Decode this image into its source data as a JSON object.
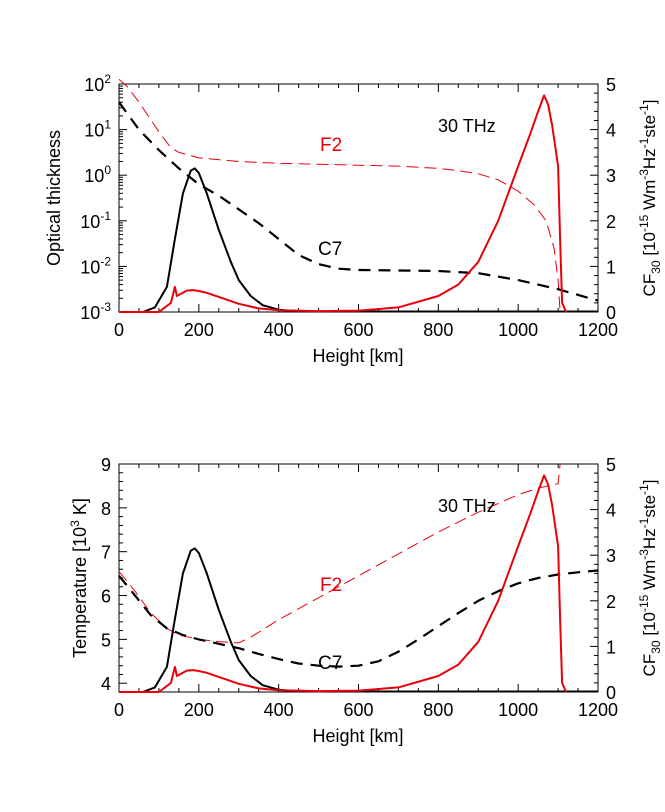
{
  "chart_data": [
    {
      "type": "line",
      "title": "",
      "xlabel": "Height [km]",
      "ylabel": "Optical thickness",
      "y2label_base": "CF",
      "y2label_sub": "30",
      "y2label_rest": " [10",
      "y2label_exp": "-15",
      "y2label_tail": " Wm",
      "y2label_exp2": "-3",
      "y2label_hz": "Hz",
      "y2label_exp3": "-1",
      "y2label_ste": "ste",
      "y2label_exp4": "-1",
      "y2label_end": "]",
      "xlim": [
        0,
        1200
      ],
      "ylim_log10": [
        -3,
        2
      ],
      "y2lim": [
        0,
        5
      ],
      "xticks": [
        "0",
        "200",
        "400",
        "600",
        "800",
        "1000",
        "1200"
      ],
      "yticks": [
        {
          "base": "10",
          "exp": "2",
          "log": 2
        },
        {
          "base": "10",
          "exp": "1",
          "log": 1
        },
        {
          "base": "10",
          "exp": "0",
          "log": 0
        },
        {
          "base": "10",
          "exp": "-1",
          "log": -1
        },
        {
          "base": "10",
          "exp": "-2",
          "log": -2
        },
        {
          "base": "10",
          "exp": "-3",
          "log": -3
        }
      ],
      "y2ticks": [
        "0",
        "1",
        "2",
        "3",
        "4",
        "5"
      ],
      "annotations": {
        "freq": "30 THz",
        "f2": "F2",
        "c7": "C7"
      },
      "colors": {
        "F2": "#e8000b",
        "C7": "#000000"
      },
      "series": [
        {
          "name": "F2",
          "axis": "left",
          "style": "dashed-thin",
          "color": "#e8000b",
          "x": [
            0,
            20,
            50,
            100,
            130,
            150,
            200,
            300,
            400,
            500,
            600,
            700,
            800,
            850,
            900,
            950,
            1000,
            1040,
            1070,
            1090,
            1100,
            1105
          ],
          "y": [
            2.1,
            1.95,
            1.6,
            0.95,
            0.6,
            0.5,
            0.38,
            0.3,
            0.26,
            0.24,
            0.22,
            0.2,
            0.15,
            0.1,
            0.03,
            -0.1,
            -0.35,
            -0.65,
            -1.0,
            -1.6,
            -2.3,
            -3.0
          ]
        },
        {
          "name": "C7",
          "axis": "left",
          "style": "dashed-thick",
          "color": "#000000",
          "x": [
            0,
            50,
            100,
            150,
            200,
            250,
            300,
            350,
            400,
            450,
            500,
            550,
            600,
            700,
            800,
            900,
            1000,
            1100,
            1200
          ],
          "y": [
            1.6,
            1.0,
            0.55,
            0.15,
            -0.2,
            -0.45,
            -0.75,
            -1.05,
            -1.4,
            -1.75,
            -1.95,
            -2.05,
            -2.08,
            -2.09,
            -2.1,
            -2.15,
            -2.3,
            -2.5,
            -2.75
          ]
        },
        {
          "name": "C7",
          "axis": "right",
          "style": "solid",
          "color": "#000000",
          "x": [
            0,
            60,
            90,
            120,
            140,
            160,
            180,
            190,
            200,
            220,
            250,
            280,
            300,
            330,
            360,
            400,
            450,
            500,
            600,
            800,
            1000,
            1200
          ],
          "y": [
            0,
            0,
            0.1,
            0.55,
            1.6,
            2.6,
            3.1,
            3.15,
            3.05,
            2.6,
            1.8,
            1.1,
            0.7,
            0.35,
            0.15,
            0.05,
            0.01,
            0.01,
            0.01,
            0.01,
            0.01,
            0.01
          ]
        },
        {
          "name": "F2",
          "axis": "right",
          "style": "solid",
          "color": "#e8000b",
          "x": [
            0,
            100,
            130,
            140,
            145,
            155,
            170,
            185,
            200,
            220,
            260,
            300,
            350,
            400,
            500,
            600,
            700,
            800,
            850,
            900,
            950,
            1000,
            1030,
            1050,
            1065,
            1075,
            1085,
            1100,
            1105,
            1110,
            1120
          ],
          "y": [
            0,
            0,
            0.2,
            0.55,
            0.35,
            0.4,
            0.47,
            0.48,
            0.46,
            0.42,
            0.3,
            0.18,
            0.08,
            0.04,
            0.02,
            0.03,
            0.1,
            0.35,
            0.6,
            1.1,
            2.0,
            3.2,
            3.9,
            4.4,
            4.75,
            4.55,
            4.1,
            3.2,
            1.6,
            0.2,
            0.0
          ]
        }
      ]
    },
    {
      "type": "line",
      "title": "",
      "xlabel": "Height [km]",
      "ylabel_pre": "Temperature [10",
      "ylabel_exp": "3",
      "ylabel_post": " K]",
      "xlim": [
        0,
        1200
      ],
      "ylim": [
        3.8,
        9
      ],
      "y2lim": [
        0,
        5
      ],
      "xticks": [
        "0",
        "200",
        "400",
        "600",
        "800",
        "1000",
        "1200"
      ],
      "yticks": [
        "4",
        "5",
        "6",
        "7",
        "8",
        "9"
      ],
      "y2ticks": [
        "0",
        "1",
        "2",
        "3",
        "4",
        "5"
      ],
      "annotations": {
        "freq": "30 THz",
        "f2": "F2",
        "c7": "C7"
      },
      "series": [
        {
          "name": "F2",
          "axis": "left",
          "style": "dashed-thin",
          "color": "#e8000b",
          "x": [
            0,
            40,
            80,
            120,
            150,
            200,
            250,
            300,
            330,
            400,
            500,
            600,
            700,
            800,
            900,
            1000,
            1050,
            1100,
            1105
          ],
          "y": [
            6.55,
            6.1,
            5.6,
            5.25,
            5.1,
            5.0,
            4.95,
            4.92,
            5.05,
            5.45,
            5.95,
            6.45,
            6.95,
            7.45,
            7.9,
            8.3,
            8.45,
            8.55,
            9.0
          ]
        },
        {
          "name": "C7",
          "axis": "left",
          "style": "dashed-thick",
          "color": "#000000",
          "x": [
            0,
            40,
            80,
            120,
            160,
            200,
            250,
            300,
            350,
            400,
            450,
            500,
            550,
            600,
            650,
            700,
            750,
            800,
            850,
            900,
            950,
            1000,
            1050,
            1100,
            1150,
            1200
          ],
          "y": [
            6.45,
            6.0,
            5.55,
            5.25,
            5.1,
            5.0,
            4.9,
            4.8,
            4.67,
            4.55,
            4.45,
            4.4,
            4.38,
            4.4,
            4.5,
            4.72,
            5.0,
            5.3,
            5.6,
            5.88,
            6.1,
            6.28,
            6.4,
            6.48,
            6.53,
            6.57
          ]
        },
        {
          "name": "C7",
          "axis": "right",
          "style": "solid",
          "color": "#000000",
          "x": [
            0,
            60,
            90,
            120,
            140,
            160,
            180,
            190,
            200,
            220,
            250,
            280,
            300,
            330,
            360,
            400,
            450,
            500,
            600,
            800,
            1000,
            1200
          ],
          "y": [
            0,
            0,
            0.1,
            0.55,
            1.6,
            2.6,
            3.1,
            3.15,
            3.05,
            2.6,
            1.8,
            1.1,
            0.7,
            0.35,
            0.15,
            0.05,
            0.01,
            0.01,
            0.01,
            0.01,
            0.01,
            0.01
          ]
        },
        {
          "name": "F2",
          "axis": "right",
          "style": "solid",
          "color": "#e8000b",
          "x": [
            0,
            100,
            130,
            140,
            145,
            155,
            170,
            185,
            200,
            220,
            260,
            300,
            350,
            400,
            500,
            600,
            700,
            800,
            850,
            900,
            950,
            1000,
            1030,
            1050,
            1065,
            1075,
            1085,
            1100,
            1105,
            1110,
            1120
          ],
          "y": [
            0,
            0,
            0.2,
            0.55,
            0.35,
            0.4,
            0.47,
            0.48,
            0.46,
            0.42,
            0.3,
            0.18,
            0.08,
            0.04,
            0.02,
            0.03,
            0.1,
            0.35,
            0.6,
            1.1,
            2.0,
            3.2,
            3.9,
            4.4,
            4.75,
            4.55,
            4.1,
            3.2,
            1.6,
            0.2,
            0.0
          ]
        }
      ]
    }
  ]
}
